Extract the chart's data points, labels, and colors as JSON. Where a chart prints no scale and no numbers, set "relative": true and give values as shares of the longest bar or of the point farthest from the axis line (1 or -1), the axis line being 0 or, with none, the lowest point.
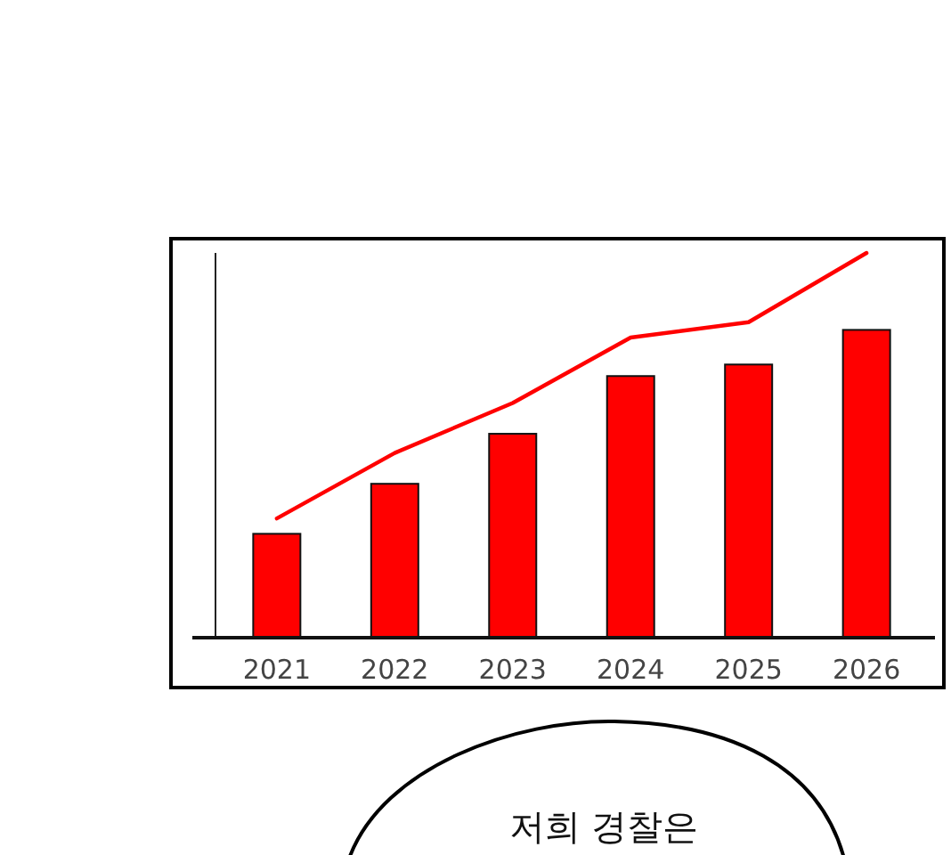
{
  "chart_data": {
    "type": "bar",
    "relative": true,
    "categories": [
      "2021",
      "2022",
      "2023",
      "2024",
      "2025",
      "2026"
    ],
    "series": [
      {
        "color": "#ff0000",
        "values": [
          0.27,
          0.4,
          0.53,
          0.68,
          0.71,
          0.8
        ]
      },
      {
        "type": "line",
        "color": "#ff0000",
        "values": [
          0.31,
          0.48,
          0.61,
          0.78,
          0.82,
          1
        ]
      }
    ],
    "annotations": [
      "저희 경찰은"
    ]
  }
}
